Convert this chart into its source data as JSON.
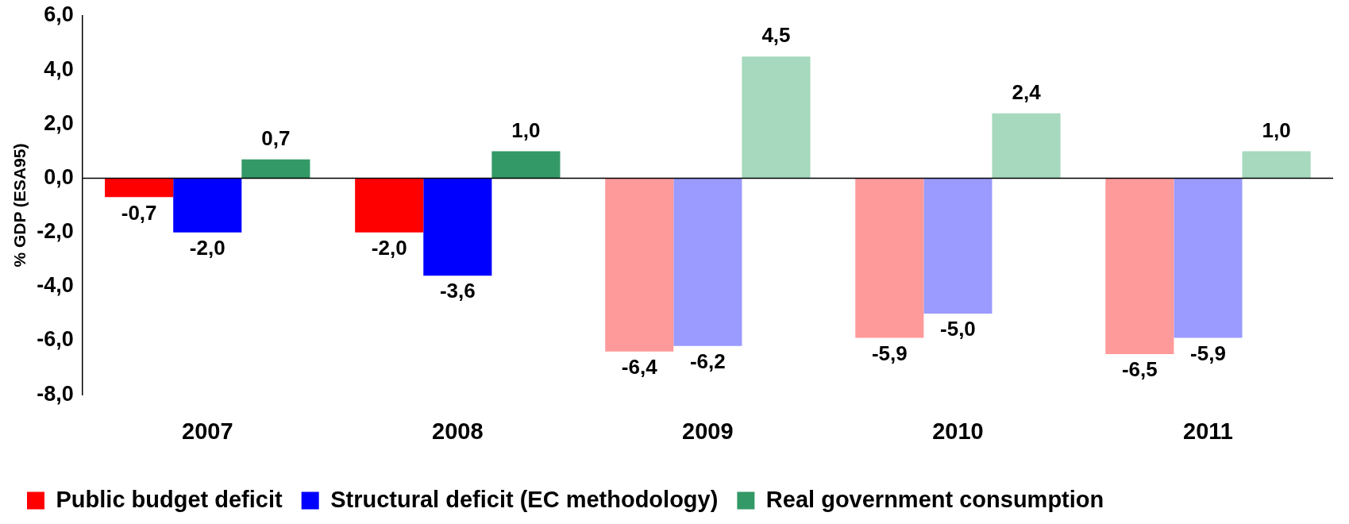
{
  "chart_data": {
    "type": "bar",
    "ylabel": "% GDP (ESA95)",
    "categories": [
      "2007",
      "2008",
      "2009",
      "2010",
      "2011"
    ],
    "series": [
      {
        "name": "Public budget deficit",
        "color": "#ff0000",
        "colors": [
          "#ff0000",
          "#ff0000",
          "#ff9a9a",
          "#ff9a9a",
          "#ff9a9a"
        ],
        "values": [
          -0.7,
          -2.0,
          -6.4,
          -5.9,
          -6.5
        ],
        "value_labels": [
          "-0,7",
          "-2,0",
          "-6,4",
          "-5,9",
          "-6,5"
        ]
      },
      {
        "name": "Structural deficit (EC methodology)",
        "color": "#0000ff",
        "colors": [
          "#0000ff",
          "#0000ff",
          "#9a9aff",
          "#9a9aff",
          "#9a9aff"
        ],
        "values": [
          -2.0,
          -3.6,
          -6.2,
          -5.0,
          -5.9
        ],
        "value_labels": [
          "-2,0",
          "-3,6",
          "-6,2",
          "-5,0",
          "-5,9"
        ]
      },
      {
        "name": "Real government consumption",
        "color": "#339966",
        "colors": [
          "#339966",
          "#339966",
          "#a6d9bd",
          "#a6d9bd",
          "#a6d9bd"
        ],
        "values": [
          0.7,
          1.0,
          4.5,
          2.4,
          1.0
        ],
        "value_labels": [
          "0,7",
          "1,0",
          "4,5",
          "2,4",
          "1,0"
        ]
      }
    ],
    "ylim": [
      -8,
      6
    ],
    "yticks": [
      {
        "value": -8,
        "label": "-8,0"
      },
      {
        "value": -6,
        "label": "-6,0"
      },
      {
        "value": -4,
        "label": "-4,0"
      },
      {
        "value": -2,
        "label": "-2,0"
      },
      {
        "value": 0,
        "label": "0,0"
      },
      {
        "value": 2,
        "label": "2,0"
      },
      {
        "value": 4,
        "label": "4,0"
      },
      {
        "value": 6,
        "label": "6,0"
      }
    ],
    "grid": false,
    "legend": "bottom",
    "ref_lines": [
      {
        "axis": "y",
        "value": 0,
        "color": "#000000"
      }
    ]
  }
}
